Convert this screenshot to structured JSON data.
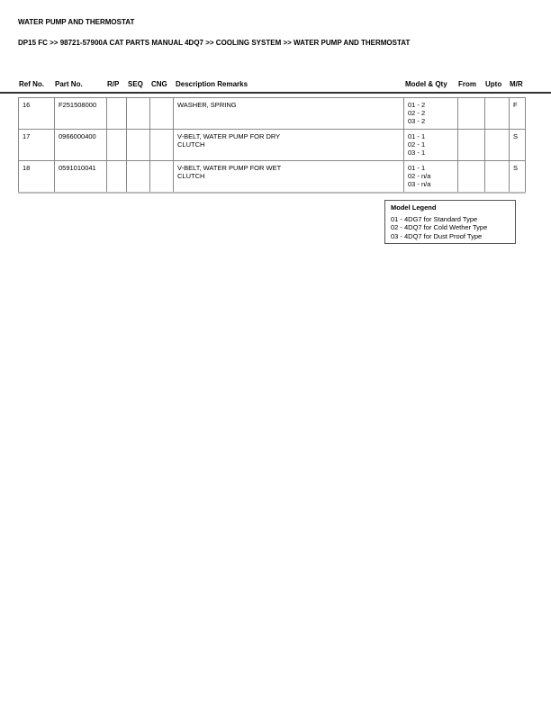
{
  "title": "WATER PUMP AND THERMOSTAT",
  "breadcrumb": "DP15 FC >> 98721-57900A CAT PARTS MANUAL 4DQ7 >> COOLING SYSTEM >> WATER PUMP AND THERMOSTAT",
  "headers": [
    "Ref No.",
    "Part No.",
    "R/P",
    "SEQ",
    "CNG",
    "Description Remarks",
    "Model & Qty",
    "From",
    "Upto",
    "M/R"
  ],
  "rows": [
    {
      "ref": "16",
      "part": "F251508000",
      "rp": "",
      "seq": "",
      "cng": "",
      "desc": "WASHER, SPRING",
      "desc2": "",
      "qty": [
        "01 - 2",
        "02 - 2",
        "03 - 2"
      ],
      "from": "",
      "upto": "",
      "mr": "F"
    },
    {
      "ref": "17",
      "part": "0966000400",
      "rp": "",
      "seq": "",
      "cng": "",
      "desc": "V-BELT, WATER PUMP FOR DRY",
      "desc2": "CLUTCH",
      "qty": [
        "01 - 1",
        "02 - 1",
        "03 - 1"
      ],
      "from": "",
      "upto": "",
      "mr": "S"
    },
    {
      "ref": "18",
      "part": "0591010041",
      "rp": "",
      "seq": "",
      "cng": "",
      "desc": "V-BELT, WATER PUMP FOR WET",
      "desc2": "CLUTCH",
      "qty": [
        "01 - 1",
        "02 - n/a",
        "03 - n/a"
      ],
      "from": "",
      "upto": "",
      "mr": "S"
    }
  ],
  "legend": {
    "title": "Model Legend",
    "items": [
      "01 - 4DG7 for Standard Type",
      "02 - 4DQ7 for Cold Wether Type",
      "03 - 4DQ7 for Dust Proof Type"
    ]
  }
}
